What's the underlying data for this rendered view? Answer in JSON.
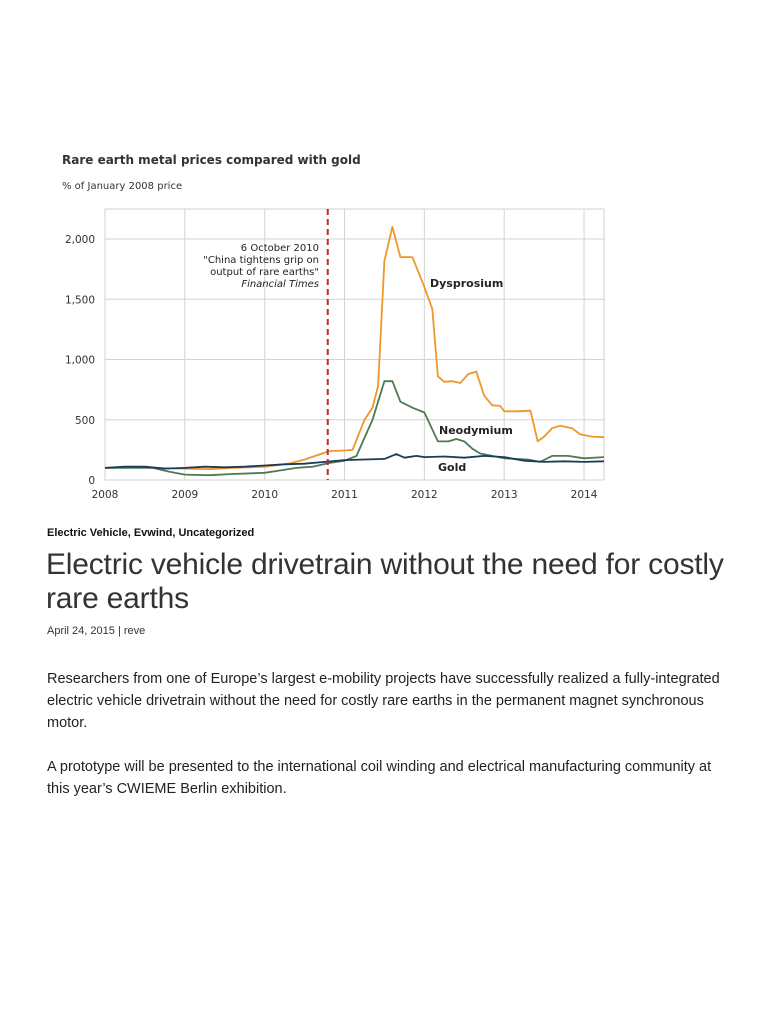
{
  "chart_data": {
    "type": "line",
    "title": "Rare earth metal prices compared with gold",
    "subtitle": "% of January 2008 price",
    "x_ticks": [
      "2008",
      "2009",
      "2010",
      "2011",
      "2012",
      "2013",
      "2014"
    ],
    "y_ticks": [
      "0",
      "500",
      "1,000",
      "1,500",
      "2,000"
    ],
    "xlim": [
      2008,
      2014.25
    ],
    "ylim": [
      0,
      2000
    ],
    "grid": true,
    "annotation": {
      "x": 2010.79,
      "lines": [
        "6 October 2010",
        "\"China tightens grip on",
        "output of rare earths\""
      ],
      "source": "Financial Times"
    },
    "series": [
      {
        "name": "Dysprosium",
        "color": "#f0962a",
        "points": [
          [
            2008,
            100
          ],
          [
            2008.3,
            105
          ],
          [
            2008.6,
            100
          ],
          [
            2009,
            95
          ],
          [
            2009.3,
            90
          ],
          [
            2009.6,
            100
          ],
          [
            2010,
            110
          ],
          [
            2010.3,
            135
          ],
          [
            2010.5,
            170
          ],
          [
            2010.7,
            215
          ],
          [
            2010.8,
            240
          ],
          [
            2011,
            245
          ],
          [
            2011.1,
            250
          ],
          [
            2011.25,
            500
          ],
          [
            2011.35,
            600
          ],
          [
            2011.42,
            780
          ],
          [
            2011.5,
            1820
          ],
          [
            2011.6,
            2100
          ],
          [
            2011.7,
            1850
          ],
          [
            2011.85,
            1850
          ],
          [
            2012,
            1600
          ],
          [
            2012.1,
            1420
          ],
          [
            2012.17,
            860
          ],
          [
            2012.25,
            815
          ],
          [
            2012.35,
            820
          ],
          [
            2012.45,
            805
          ],
          [
            2012.55,
            880
          ],
          [
            2012.65,
            900
          ],
          [
            2012.75,
            700
          ],
          [
            2012.85,
            620
          ],
          [
            2012.95,
            615
          ],
          [
            2013,
            570
          ],
          [
            2013.15,
            570
          ],
          [
            2013.33,
            575
          ],
          [
            2013.42,
            320
          ],
          [
            2013.5,
            360
          ],
          [
            2013.6,
            430
          ],
          [
            2013.7,
            450
          ],
          [
            2013.85,
            430
          ],
          [
            2013.95,
            380
          ],
          [
            2014.1,
            360
          ],
          [
            2014.25,
            355
          ]
        ]
      },
      {
        "name": "Neodymium",
        "color": "#4e7a53",
        "points": [
          [
            2008,
            100
          ],
          [
            2008.3,
            100
          ],
          [
            2008.6,
            100
          ],
          [
            2008.8,
            70
          ],
          [
            2009,
            45
          ],
          [
            2009.3,
            40
          ],
          [
            2009.6,
            50
          ],
          [
            2010,
            60
          ],
          [
            2010.2,
            80
          ],
          [
            2010.4,
            100
          ],
          [
            2010.6,
            110
          ],
          [
            2010.8,
            140
          ],
          [
            2011,
            160
          ],
          [
            2011.15,
            200
          ],
          [
            2011.25,
            350
          ],
          [
            2011.35,
            500
          ],
          [
            2011.5,
            820
          ],
          [
            2011.6,
            820
          ],
          [
            2011.7,
            650
          ],
          [
            2011.85,
            600
          ],
          [
            2012,
            560
          ],
          [
            2012.1,
            420
          ],
          [
            2012.17,
            320
          ],
          [
            2012.3,
            320
          ],
          [
            2012.4,
            340
          ],
          [
            2012.5,
            320
          ],
          [
            2012.6,
            260
          ],
          [
            2012.7,
            220
          ],
          [
            2012.85,
            200
          ],
          [
            2013,
            180
          ],
          [
            2013.3,
            170
          ],
          [
            2013.45,
            150
          ],
          [
            2013.6,
            200
          ],
          [
            2013.8,
            200
          ],
          [
            2014,
            180
          ],
          [
            2014.25,
            190
          ]
        ]
      },
      {
        "name": "Gold",
        "color": "#1c3a57",
        "points": [
          [
            2008,
            100
          ],
          [
            2008.25,
            110
          ],
          [
            2008.5,
            110
          ],
          [
            2008.75,
            95
          ],
          [
            2009,
            100
          ],
          [
            2009.25,
            110
          ],
          [
            2009.5,
            105
          ],
          [
            2009.75,
            110
          ],
          [
            2010,
            120
          ],
          [
            2010.25,
            130
          ],
          [
            2010.5,
            135
          ],
          [
            2010.75,
            150
          ],
          [
            2011,
            165
          ],
          [
            2011.25,
            170
          ],
          [
            2011.5,
            175
          ],
          [
            2011.65,
            215
          ],
          [
            2011.75,
            185
          ],
          [
            2011.9,
            200
          ],
          [
            2012,
            190
          ],
          [
            2012.25,
            195
          ],
          [
            2012.5,
            185
          ],
          [
            2012.75,
            200
          ],
          [
            2013,
            190
          ],
          [
            2013.25,
            160
          ],
          [
            2013.5,
            150
          ],
          [
            2013.75,
            155
          ],
          [
            2014,
            150
          ],
          [
            2014.25,
            155
          ]
        ]
      }
    ]
  },
  "post": {
    "categories": "Electric Vehicle, Evwind, Uncategorized",
    "title": "Electric vehicle drivetrain without the need for costly rare earths",
    "date": "April 24, 2015",
    "separator": " | ",
    "author": "reve",
    "paragraphs": [
      "Researchers from one of Europe’s largest e-mobility projects have successfully realized a fully-integrated electric vehicle drivetrain without the need for costly rare earths in the permanent magnet synchronous motor.",
      "A prototype will be presented to the international coil winding and electrical manufacturing community at this year’s CWIEME Berlin exhibition."
    ]
  }
}
